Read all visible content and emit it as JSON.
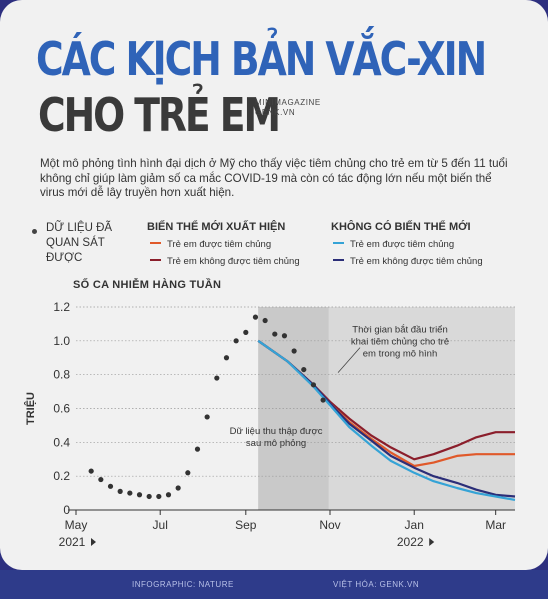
{
  "header": {
    "title_line1": "CÁC KỊCH BẢN VẮC-XIN",
    "title_line2": "CHO TRẺ EM",
    "brand_line1": "MINIMAGAZINE",
    "brand_line2": "GENK.VN"
  },
  "intro_text": "Một mô phỏng tình hình đại dịch ở Mỹ cho thấy việc tiêm chủng cho trẻ em từ 5 đến 11 tuổi không chỉ giúp làm giảm số ca mắc COVID-19 mà còn có tác động lớn nếu một biến thể virus mới dễ lây truyền hơn xuất hiện.",
  "legend": {
    "observed_label": "DỮ LIỆU ĐÃ QUAN SÁT ĐƯỢC",
    "group_new_variant": {
      "title": "BIẾN THỂ MỚI XUẤT HIỆN",
      "items": [
        {
          "label": "Trẻ em được tiêm chủng",
          "color": "#e0592a"
        },
        {
          "label": "Trẻ em không được tiêm chủng",
          "color": "#8b1e2b"
        }
      ]
    },
    "group_no_variant": {
      "title": "KHÔNG CÓ BIẾN THỂ MỚI",
      "items": [
        {
          "label": "Trẻ em được tiêm chủng",
          "color": "#35a3d6"
        },
        {
          "label": "Trẻ em không được tiêm chủng",
          "color": "#2b2e78"
        }
      ]
    }
  },
  "chart_data": {
    "type": "line",
    "title": "SỐ CA NHIỄM HÀNG TUẦN",
    "ylabel": "TRIỆU",
    "ylim": [
      0,
      1.2
    ],
    "yticks": [
      0,
      0.2,
      0.4,
      0.6,
      0.8,
      1.0,
      1.2
    ],
    "ytick_labels": [
      "0",
      "0.2",
      "0.4",
      "0.6",
      "0.8",
      "1.0",
      "1.2"
    ],
    "xlim": [
      "2021-05-01",
      "2022-03-15"
    ],
    "xticks": [
      {
        "date": "2021-05-01",
        "label": "May",
        "sublabel": "2021"
      },
      {
        "date": "2021-07-01",
        "label": "Jul"
      },
      {
        "date": "2021-09-01",
        "label": "Sep"
      },
      {
        "date": "2021-11-01",
        "label": "Nov"
      },
      {
        "date": "2022-01-01",
        "label": "Jan",
        "sublabel": "2022"
      },
      {
        "date": "2022-03-01",
        "label": "Mar"
      }
    ],
    "shaded_region": {
      "from": "2021-09-10",
      "to": "2022-03-15"
    },
    "darker_region": {
      "from": "2021-09-10",
      "to": "2021-10-31"
    },
    "annotations": [
      {
        "text": "Thời gian bắt đầu triển khai tiêm chủng cho trẻ em trong mô hình",
        "date": "2021-11-01",
        "value": 0.8
      },
      {
        "text": "Dữ liệu thu thập được sau mô phỏng",
        "date": "2021-09-20",
        "value": 0.45
      }
    ],
    "observed": {
      "name": "DỮ LIỆU ĐÃ QUAN SÁT ĐƯỢC",
      "points": [
        [
          "2021-05-12",
          0.23
        ],
        [
          "2021-05-19",
          0.18
        ],
        [
          "2021-05-26",
          0.14
        ],
        [
          "2021-06-02",
          0.11
        ],
        [
          "2021-06-09",
          0.1
        ],
        [
          "2021-06-16",
          0.09
        ],
        [
          "2021-06-23",
          0.08
        ],
        [
          "2021-06-30",
          0.08
        ],
        [
          "2021-07-07",
          0.09
        ],
        [
          "2021-07-14",
          0.13
        ],
        [
          "2021-07-21",
          0.22
        ],
        [
          "2021-07-28",
          0.36
        ],
        [
          "2021-08-04",
          0.55
        ],
        [
          "2021-08-11",
          0.78
        ],
        [
          "2021-08-18",
          0.9
        ],
        [
          "2021-08-25",
          1.0
        ],
        [
          "2021-09-01",
          1.05
        ],
        [
          "2021-09-08",
          1.14
        ],
        [
          "2021-09-15",
          1.12
        ],
        [
          "2021-09-22",
          1.04
        ],
        [
          "2021-09-29",
          1.03
        ],
        [
          "2021-10-06",
          0.94
        ],
        [
          "2021-10-13",
          0.83
        ],
        [
          "2021-10-20",
          0.74
        ],
        [
          "2021-10-27",
          0.65
        ]
      ]
    },
    "series": [
      {
        "name": "Trẻ em không được tiêm chủng",
        "group": "BIẾN THỂ MỚI XUẤT HIỆN",
        "color": "#8b1e2b",
        "points": [
          [
            "2021-09-10",
            1.0
          ],
          [
            "2021-10-01",
            0.88
          ],
          [
            "2021-10-20",
            0.74
          ],
          [
            "2021-11-01",
            0.64
          ],
          [
            "2021-11-15",
            0.54
          ],
          [
            "2021-12-01",
            0.44
          ],
          [
            "2021-12-15",
            0.37
          ],
          [
            "2022-01-01",
            0.3
          ],
          [
            "2022-01-15",
            0.33
          ],
          [
            "2022-02-01",
            0.38
          ],
          [
            "2022-02-15",
            0.43
          ],
          [
            "2022-03-01",
            0.46
          ],
          [
            "2022-03-15",
            0.46
          ]
        ]
      },
      {
        "name": "Trẻ em được tiêm chủng",
        "group": "BIẾN THỂ MỚI XUẤT HIỆN",
        "color": "#e0592a",
        "points": [
          [
            "2021-09-10",
            1.0
          ],
          [
            "2021-10-01",
            0.88
          ],
          [
            "2021-10-20",
            0.74
          ],
          [
            "2021-11-01",
            0.63
          ],
          [
            "2021-11-15",
            0.52
          ],
          [
            "2021-12-01",
            0.42
          ],
          [
            "2021-12-15",
            0.34
          ],
          [
            "2022-01-01",
            0.26
          ],
          [
            "2022-01-15",
            0.28
          ],
          [
            "2022-02-01",
            0.32
          ],
          [
            "2022-02-15",
            0.33
          ],
          [
            "2022-03-01",
            0.33
          ],
          [
            "2022-03-15",
            0.33
          ]
        ]
      },
      {
        "name": "Trẻ em không được tiêm chủng",
        "group": "KHÔNG CÓ BIẾN THỂ MỚI",
        "color": "#2b2e78",
        "points": [
          [
            "2021-09-10",
            1.0
          ],
          [
            "2021-10-01",
            0.88
          ],
          [
            "2021-10-20",
            0.74
          ],
          [
            "2021-11-01",
            0.63
          ],
          [
            "2021-11-15",
            0.51
          ],
          [
            "2021-12-01",
            0.41
          ],
          [
            "2021-12-15",
            0.32
          ],
          [
            "2022-01-01",
            0.25
          ],
          [
            "2022-01-15",
            0.2
          ],
          [
            "2022-02-01",
            0.16
          ],
          [
            "2022-02-15",
            0.12
          ],
          [
            "2022-03-01",
            0.09
          ],
          [
            "2022-03-15",
            0.08
          ]
        ]
      },
      {
        "name": "Trẻ em được tiêm chủng",
        "group": "KHÔNG CÓ BIẾN THỂ MỚI",
        "color": "#35a3d6",
        "points": [
          [
            "2021-09-10",
            1.0
          ],
          [
            "2021-10-01",
            0.88
          ],
          [
            "2021-10-20",
            0.73
          ],
          [
            "2021-11-01",
            0.62
          ],
          [
            "2021-11-15",
            0.49
          ],
          [
            "2021-12-01",
            0.38
          ],
          [
            "2021-12-15",
            0.29
          ],
          [
            "2022-01-01",
            0.22
          ],
          [
            "2022-01-15",
            0.17
          ],
          [
            "2022-02-01",
            0.13
          ],
          [
            "2022-02-15",
            0.1
          ],
          [
            "2022-03-01",
            0.08
          ],
          [
            "2022-03-15",
            0.06
          ]
        ]
      }
    ],
    "grid": true
  },
  "footer": {
    "left": "INFOGRAPHIC: NATURE",
    "right": "VIỆT HÓA: GENK.VN"
  },
  "colors": {
    "title_blue": "#2f63b8",
    "title_dark": "#3a3a3a",
    "background": "#f1f1f1",
    "frame": "#2d2f7f",
    "shade_light": "#d9d9d9",
    "shade_dark": "#c9c9c9"
  }
}
